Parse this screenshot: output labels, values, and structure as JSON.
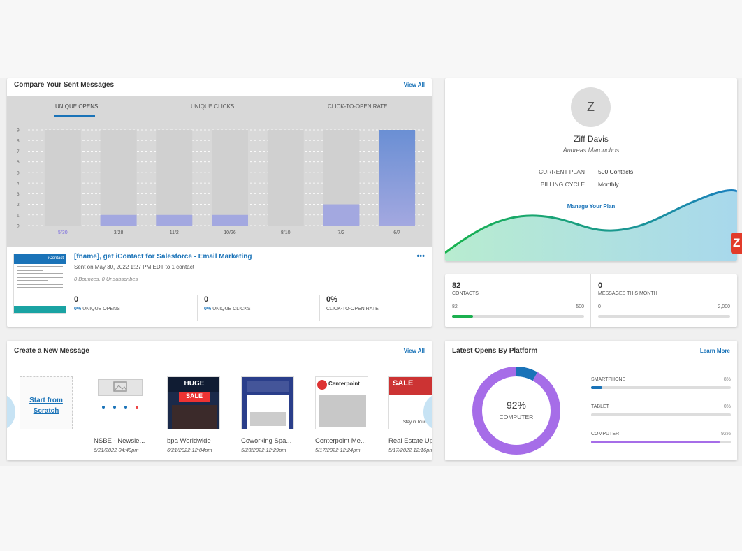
{
  "compare": {
    "title": "Compare Your Sent Messages",
    "view_all": "View All",
    "tabs": [
      "UNIQUE OPENS",
      "UNIQUE CLICKS",
      "CLICK-TO-OPEN RATE"
    ],
    "message": {
      "title": "[fname], get iContact for Salesforce - Email Marketing",
      "sent": "Sent on May 30, 2022 1:27 PM EDT to 1 contact",
      "bounces": "0 Bounces, 0 Unsubscribes",
      "more": "•••",
      "thumb_brand": "iContact",
      "stats": [
        {
          "value": "0",
          "pct": "0%",
          "label": "UNIQUE OPENS"
        },
        {
          "value": "0",
          "pct": "0%",
          "label": "UNIQUE CLICKS"
        },
        {
          "value": "0%",
          "pct": "",
          "label": "CLICK-TO-OPEN RATE"
        }
      ]
    }
  },
  "chart_data": {
    "type": "bar",
    "categories": [
      "5/30",
      "3/28",
      "11/2",
      "10/26",
      "8/10",
      "7/2",
      "6/7"
    ],
    "values": [
      0,
      1,
      1,
      1,
      0,
      2,
      9
    ],
    "ylim": [
      0,
      9
    ],
    "yticks": [
      "0",
      "1",
      "2",
      "3",
      "4",
      "5",
      "6",
      "7",
      "8",
      "9"
    ],
    "grid": true,
    "bar_color": "#a3a8e0",
    "highlight_color": "#6a8fd4"
  },
  "profile": {
    "initial": "Z",
    "name": "Ziff Davis",
    "subtitle": "Andreas Marouchos",
    "plan_label": "CURRENT PLAN",
    "plan_value": "500 Contacts",
    "billing_label": "BILLING CYCLE",
    "billing_value": "Monthly",
    "manage": "Manage Your Plan"
  },
  "stats": {
    "contacts": {
      "value": "82",
      "label": "CONTACTS",
      "min": "82",
      "max": "500",
      "fill": 0.16
    },
    "messages": {
      "value": "0",
      "label": "MESSAGES THIS MONTH",
      "min": "0",
      "max": "2,000",
      "fill": 0
    }
  },
  "create": {
    "title": "Create a New Message",
    "view_all": "View All",
    "scratch_line1": "Start from",
    "scratch_line2": "Scratch",
    "templates": [
      {
        "name": "NSBE - Newsle...",
        "date": "6/21/2022 04:49pm"
      },
      {
        "name": "bpa Worldwide",
        "date": "6/21/2022 12:04pm",
        "banner1": "HUGE",
        "banner2": "SALE"
      },
      {
        "name": "Coworking Spa...",
        "date": "5/23/2022 12:29pm"
      },
      {
        "name": "Centerpoint Me...",
        "date": "5/17/2022 12:24pm",
        "brand": "Centerpoint"
      },
      {
        "name": "Real Estate Up...",
        "date": "5/17/2022 12:16pm",
        "banner1": "SALE",
        "tagline": "Stay in Touch"
      }
    ]
  },
  "opens": {
    "title": "Latest Opens By Platform",
    "learn_more": "Learn More",
    "center_pct": "92%",
    "center_label": "COMPUTER",
    "platforms": [
      {
        "name": "SMARTPHONE",
        "pct": "8%",
        "value": 0.08,
        "color": "#1a73b8"
      },
      {
        "name": "TABLET",
        "pct": "0%",
        "value": 0,
        "color": "#a66de8"
      },
      {
        "name": "COMPUTER",
        "pct": "92%",
        "value": 0.92,
        "color": "#a66de8"
      }
    ]
  },
  "badge": "Z"
}
